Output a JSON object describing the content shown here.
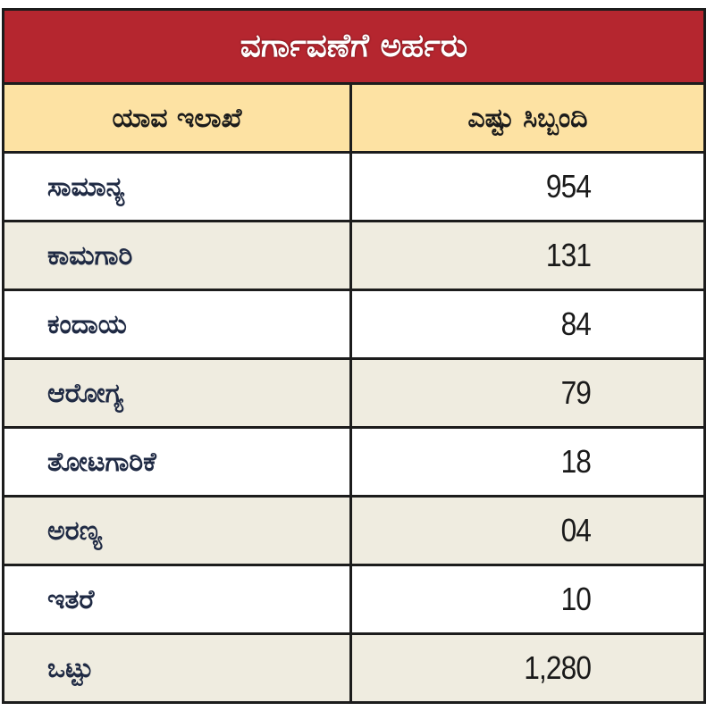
{
  "table": {
    "title": "ವರ್ಗಾವಣೆಗೆ ಅರ್ಹರು",
    "headers": [
      "ಯಾವ ಇಲಾಖೆ",
      "ಎಷ್ಟು ಸಿಬ್ಬಂದಿ"
    ],
    "rows": [
      {
        "department": "ಸಾಮಾನ್ಯ",
        "staff": "954"
      },
      {
        "department": "ಕಾಮಗಾರಿ",
        "staff": "131"
      },
      {
        "department": "ಕಂದಾಯ",
        "staff": "84"
      },
      {
        "department": "ಆರೋಗ್ಯ",
        "staff": "79"
      },
      {
        "department": "ತೋಟಗಾರಿಕೆ",
        "staff": "18"
      },
      {
        "department": "ಅರಣ್ಯ",
        "staff": "04"
      },
      {
        "department": "ಇತರೆ",
        "staff": "10"
      },
      {
        "department": "ಒಟ್ಟು",
        "staff": "1,280"
      }
    ],
    "colors": {
      "title_bg": "#b5262f",
      "header_bg": "#fde2a3",
      "row_alt_bg": "#efece0",
      "border": "#1c1c1c"
    }
  }
}
